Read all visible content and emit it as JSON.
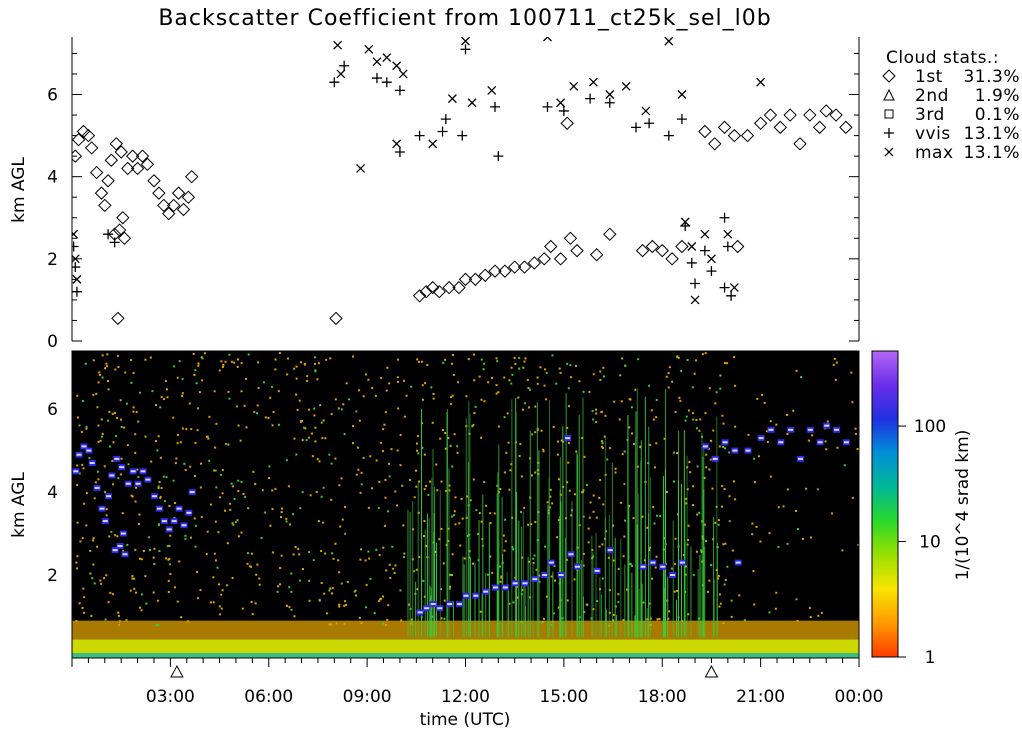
{
  "chart_data": [
    {
      "type": "scatter",
      "title": "Backscatter Coefficient from 100711_ct25k_sel_l0b",
      "ylabel": "km AGL",
      "ylim": [
        0,
        7.4
      ],
      "yticks": [
        "0",
        "2",
        "4",
        "6"
      ],
      "xlim": [
        0,
        24
      ],
      "legend": {
        "title": "Cloud stats.:",
        "placement": "right",
        "entries": [
          {
            "symbol": "◇",
            "label": "1st",
            "value": "31.3%"
          },
          {
            "symbol": "△",
            "label": "2nd",
            "value": "1.9%"
          },
          {
            "symbol": "□",
            "label": "3rd",
            "value": "0.1%"
          },
          {
            "symbol": "+",
            "label": "vvis",
            "value": "13.1%"
          },
          {
            "symbol": "×",
            "label": "max",
            "value": "13.1%"
          }
        ]
      },
      "series": [
        {
          "name": "1st",
          "symbol": "diamond",
          "points": [
            [
              0.1,
              4.5
            ],
            [
              0.2,
              4.9
            ],
            [
              0.35,
              5.1
            ],
            [
              0.5,
              5.0
            ],
            [
              0.6,
              4.7
            ],
            [
              0.75,
              4.1
            ],
            [
              0.9,
              3.6
            ],
            [
              1.0,
              3.3
            ],
            [
              1.1,
              3.9
            ],
            [
              1.2,
              4.4
            ],
            [
              1.35,
              4.8
            ],
            [
              1.5,
              4.6
            ],
            [
              1.3,
              2.6
            ],
            [
              1.45,
              2.7
            ],
            [
              1.6,
              2.5
            ],
            [
              1.55,
              3.0
            ],
            [
              1.7,
              4.2
            ],
            [
              1.85,
              4.5
            ],
            [
              2.0,
              4.2
            ],
            [
              2.15,
              4.5
            ],
            [
              2.3,
              4.3
            ],
            [
              2.5,
              3.9
            ],
            [
              2.65,
              3.6
            ],
            [
              2.8,
              3.3
            ],
            [
              2.95,
              3.1
            ],
            [
              3.1,
              3.3
            ],
            [
              3.25,
              3.6
            ],
            [
              3.4,
              3.2
            ],
            [
              3.55,
              3.5
            ],
            [
              3.65,
              4.0
            ],
            [
              1.4,
              0.55
            ],
            [
              8.05,
              0.55
            ],
            [
              10.6,
              1.1
            ],
            [
              10.8,
              1.2
            ],
            [
              11.0,
              1.3
            ],
            [
              11.2,
              1.2
            ],
            [
              11.5,
              1.3
            ],
            [
              11.8,
              1.3
            ],
            [
              12.0,
              1.5
            ],
            [
              12.3,
              1.5
            ],
            [
              12.6,
              1.6
            ],
            [
              12.9,
              1.7
            ],
            [
              13.2,
              1.7
            ],
            [
              13.5,
              1.8
            ],
            [
              13.8,
              1.8
            ],
            [
              14.1,
              1.9
            ],
            [
              14.4,
              2.0
            ],
            [
              14.6,
              2.3
            ],
            [
              14.9,
              2.0
            ],
            [
              15.2,
              2.5
            ],
            [
              15.4,
              2.2
            ],
            [
              16.0,
              2.1
            ],
            [
              16.4,
              2.6
            ],
            [
              17.4,
              2.2
            ],
            [
              17.7,
              2.3
            ],
            [
              18.0,
              2.2
            ],
            [
              18.3,
              2.0
            ],
            [
              18.6,
              2.3
            ],
            [
              20.3,
              2.3
            ],
            [
              15.1,
              5.3
            ],
            [
              19.3,
              5.1
            ],
            [
              19.6,
              4.8
            ],
            [
              19.9,
              5.2
            ],
            [
              20.2,
              5.0
            ],
            [
              20.6,
              5.0
            ],
            [
              21.0,
              5.3
            ],
            [
              21.3,
              5.5
            ],
            [
              21.6,
              5.2
            ],
            [
              21.9,
              5.5
            ],
            [
              22.2,
              4.8
            ],
            [
              22.5,
              5.5
            ],
            [
              22.8,
              5.2
            ],
            [
              23.0,
              5.6
            ],
            [
              23.3,
              5.5
            ],
            [
              23.6,
              5.2
            ]
          ]
        },
        {
          "name": "vvis",
          "symbol": "plus",
          "points": [
            [
              0.05,
              2.3
            ],
            [
              0.1,
              1.8
            ],
            [
              0.15,
              1.2
            ],
            [
              1.1,
              2.6
            ],
            [
              1.3,
              2.4
            ],
            [
              8.0,
              6.3
            ],
            [
              8.3,
              6.7
            ],
            [
              9.3,
              6.4
            ],
            [
              9.6,
              6.3
            ],
            [
              10.0,
              6.1
            ],
            [
              10.0,
              4.6
            ],
            [
              10.6,
              5.0
            ],
            [
              11.3,
              5.1
            ],
            [
              11.9,
              5.0
            ],
            [
              12.9,
              5.7
            ],
            [
              13.0,
              4.5
            ],
            [
              14.5,
              5.7
            ],
            [
              15.0,
              5.6
            ],
            [
              15.8,
              5.9
            ],
            [
              16.4,
              5.8
            ],
            [
              17.2,
              5.2
            ],
            [
              17.6,
              5.3
            ],
            [
              18.2,
              5.0
            ],
            [
              18.6,
              5.4
            ],
            [
              18.7,
              2.8
            ],
            [
              18.9,
              1.9
            ],
            [
              19.0,
              1.4
            ],
            [
              19.3,
              2.2
            ],
            [
              19.5,
              1.7
            ],
            [
              19.9,
              3.0
            ],
            [
              20.0,
              2.3
            ],
            [
              20.1,
              1.1
            ],
            [
              19.9,
              1.3
            ],
            [
              11.4,
              5.4
            ],
            [
              12.0,
              7.1
            ]
          ]
        },
        {
          "name": "max",
          "symbol": "cross",
          "points": [
            [
              0.05,
              2.6
            ],
            [
              0.1,
              2.0
            ],
            [
              0.15,
              1.5
            ],
            [
              8.1,
              7.2
            ],
            [
              8.2,
              6.5
            ],
            [
              9.05,
              7.1
            ],
            [
              9.3,
              6.8
            ],
            [
              9.6,
              6.9
            ],
            [
              9.9,
              6.7
            ],
            [
              10.1,
              6.5
            ],
            [
              9.9,
              4.8
            ],
            [
              8.8,
              4.2
            ],
            [
              11.6,
              5.9
            ],
            [
              12.0,
              7.3
            ],
            [
              12.2,
              5.8
            ],
            [
              12.8,
              6.1
            ],
            [
              14.5,
              7.4
            ],
            [
              14.9,
              5.8
            ],
            [
              15.3,
              6.2
            ],
            [
              15.9,
              6.3
            ],
            [
              16.4,
              6.0
            ],
            [
              16.9,
              6.2
            ],
            [
              17.5,
              5.6
            ],
            [
              18.2,
              7.3
            ],
            [
              18.6,
              6.0
            ],
            [
              18.7,
              2.9
            ],
            [
              18.9,
              2.3
            ],
            [
              19.0,
              1.0
            ],
            [
              19.3,
              2.6
            ],
            [
              19.5,
              2.0
            ],
            [
              20.0,
              2.6
            ],
            [
              20.2,
              1.3
            ],
            [
              21.0,
              6.3
            ],
            [
              11.0,
              4.8
            ]
          ]
        }
      ]
    },
    {
      "type": "heatmap",
      "ylabel": "km AGL",
      "ylim": [
        0,
        7.4
      ],
      "yticks": [
        "2",
        "4",
        "6"
      ],
      "xlabel": "time (UTC)",
      "xticks": [
        "03:00",
        "06:00",
        "09:00",
        "12:00",
        "15:00",
        "18:00",
        "21:00",
        "00:00"
      ],
      "colorbar": {
        "label": "1/(10^4 srad km)",
        "scale": "log",
        "ticks": [
          "1",
          "10",
          "100"
        ],
        "colors": [
          "#ff3b00",
          "#ff9a00",
          "#f7e600",
          "#9ae000",
          "#2ad82a",
          "#00b896",
          "#0090d8",
          "#2030e0",
          "#6a2ee8",
          "#b466f6"
        ]
      },
      "markers": [
        {
          "symbol": "△",
          "time": 3.2
        },
        {
          "symbol": "△",
          "time": 19.5
        }
      ],
      "colors": {
        "background": "#000000",
        "surface_layer": "#ccd800",
        "sparse_noise": "#e0a400",
        "streaks": "#3ccc3c",
        "cloud_core": "#2d2ae8",
        "cloud_edge": "#d9d9ff"
      }
    }
  ]
}
